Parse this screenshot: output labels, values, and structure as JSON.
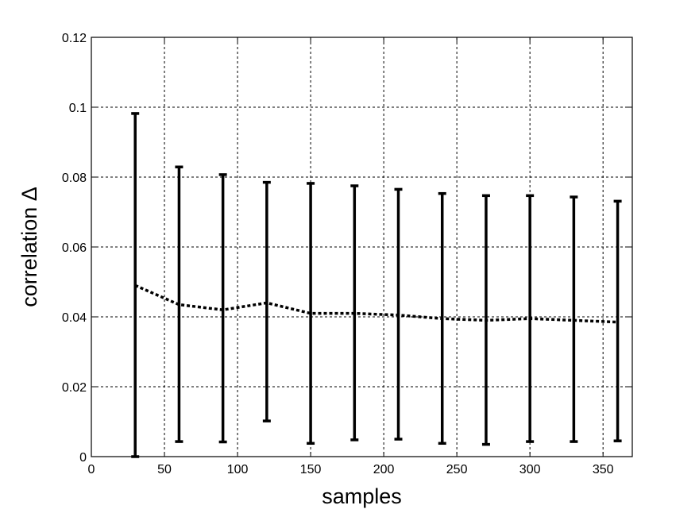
{
  "chart_data": {
    "type": "line",
    "title": "",
    "xlabel": "samples",
    "ylabel": "correlation Δ",
    "xlim": [
      0,
      370
    ],
    "ylim": [
      0,
      0.12
    ],
    "x_ticks": [
      "0",
      "50",
      "100",
      "150",
      "200",
      "250",
      "300",
      "350"
    ],
    "y_ticks": [
      "0",
      "0.02",
      "0.04",
      "0.06",
      "0.08",
      "0.1",
      "0.12"
    ],
    "grid": true,
    "series": [
      {
        "x": [
          30,
          60,
          90,
          120,
          150,
          180,
          210,
          240,
          270,
          300,
          330,
          360
        ],
        "mean": [
          0.049,
          0.0435,
          0.042,
          0.044,
          0.041,
          0.041,
          0.0405,
          0.0395,
          0.039,
          0.0395,
          0.039,
          0.0385
        ],
        "lower": [
          0.0,
          0.0043,
          0.0042,
          0.0102,
          0.0038,
          0.0048,
          0.005,
          0.0038,
          0.0035,
          0.0043,
          0.0043,
          0.0045
        ],
        "upper": [
          0.0982,
          0.0829,
          0.0807,
          0.0785,
          0.0782,
          0.0775,
          0.0765,
          0.0753,
          0.0747,
          0.0747,
          0.0743,
          0.0731
        ]
      }
    ]
  }
}
